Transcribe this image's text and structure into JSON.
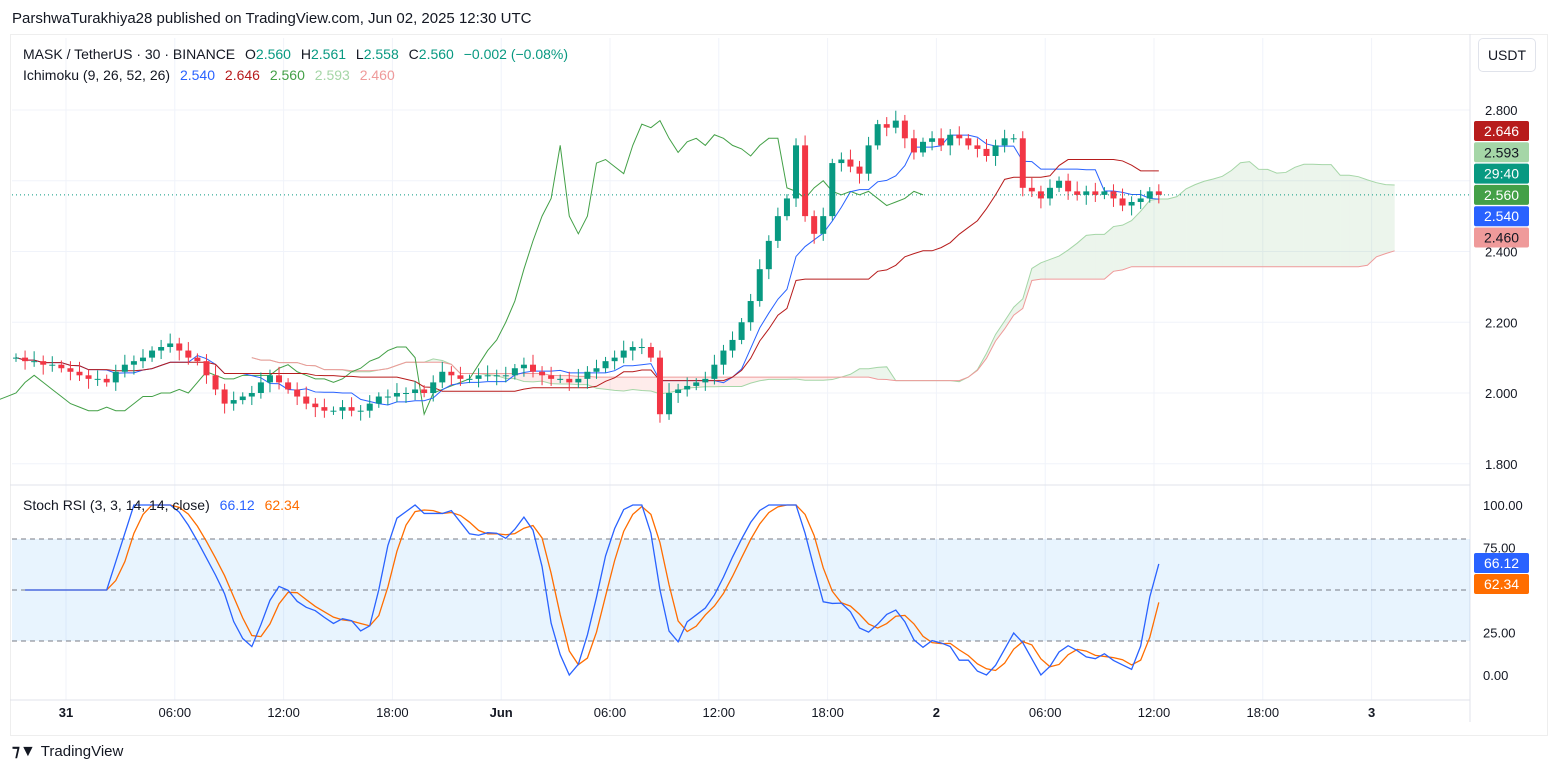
{
  "header": {
    "published": "ParshwaTurakhiya28 published on TradingView.com, Jun 02, 2025 12:30 UTC"
  },
  "symbol": {
    "name": "MASK / TetherUS · 30 · BINANCE",
    "o_label": "O",
    "o": "2.560",
    "h_label": "H",
    "h": "2.561",
    "l_label": "L",
    "l": "2.558",
    "c_label": "C",
    "c": "2.560",
    "change": "−0.002 (−0.08%)"
  },
  "ichimoku": {
    "label": "Ichimoku (9, 26, 52, 26)",
    "conversion": "2.540",
    "base": "2.646",
    "lagging": "2.560",
    "lead_a": "2.593",
    "lead_b": "2.460"
  },
  "stoch": {
    "label": "Stoch RSI (3, 3, 14, 14, close)",
    "k": "66.12",
    "d": "62.34"
  },
  "currency_button": "USDT",
  "countdown": "29:40",
  "footer": {
    "logo_text": "TradingView"
  },
  "colors": {
    "up": "#089981",
    "down": "#f23645",
    "conversion": "#2962ff",
    "base": "#b71c1c",
    "lagging": "#43a047",
    "lead_a": "#a5d6a7",
    "lead_b": "#ef9a9a",
    "stoch_k": "#2962ff",
    "stoch_d": "#ff6d00"
  },
  "chart_data": {
    "type": "candlestick",
    "interval_minutes": 30,
    "price_axis": {
      "ticks": [
        "1.800",
        "2.000",
        "2.200",
        "2.400",
        "2.800"
      ],
      "range": [
        1.75,
        2.95
      ]
    },
    "stoch_axis": {
      "ticks": [
        "100.00",
        "75.00",
        "25.00",
        "0.00"
      ],
      "bands": [
        20,
        80
      ],
      "range": [
        -15,
        110
      ]
    },
    "time_axis": {
      "ticks": [
        "31",
        "06:00",
        "12:00",
        "18:00",
        "Jun",
        "06:00",
        "12:00",
        "18:00",
        "2",
        "06:00",
        "12:00",
        "18:00",
        "3"
      ]
    },
    "last_price": 2.56,
    "price_labels": [
      {
        "value": "2.646",
        "color": "#b71c1c",
        "text": "#fff"
      },
      {
        "value": "2.593",
        "color": "#a5d6a7",
        "text": "#131722"
      },
      {
        "value": "29:40",
        "color": "#089981",
        "text": "#fff"
      },
      {
        "value": "2.560",
        "color": "#43a047",
        "text": "#fff"
      },
      {
        "value": "2.540",
        "color": "#2962ff",
        "text": "#fff"
      },
      {
        "value": "2.460",
        "color": "#ef9a9a",
        "text": "#131722"
      }
    ],
    "stoch_labels": [
      {
        "value": "66.12",
        "color": "#2962ff"
      },
      {
        "value": "62.34",
        "color": "#ff6d00"
      }
    ],
    "closes": [
      2.1,
      2.09,
      2.09,
      2.08,
      2.08,
      2.07,
      2.06,
      2.05,
      2.04,
      2.04,
      2.03,
      2.06,
      2.08,
      2.09,
      2.1,
      2.12,
      2.13,
      2.14,
      2.12,
      2.1,
      2.09,
      2.05,
      2.01,
      1.97,
      1.98,
      1.99,
      2.0,
      2.03,
      2.05,
      2.03,
      2.01,
      1.99,
      1.97,
      1.96,
      1.95,
      1.95,
      1.96,
      1.95,
      1.95,
      1.97,
      1.99,
      1.99,
      2.0,
      2.0,
      2.01,
      2.0,
      2.03,
      2.06,
      2.05,
      2.04,
      2.04,
      2.05,
      2.05,
      2.05,
      2.05,
      2.07,
      2.08,
      2.06,
      2.05,
      2.04,
      2.04,
      2.03,
      2.04,
      2.06,
      2.07,
      2.09,
      2.1,
      2.12,
      2.13,
      2.13,
      2.1,
      1.94,
      2.0,
      2.01,
      2.02,
      2.03,
      2.04,
      2.08,
      2.12,
      2.15,
      2.2,
      2.26,
      2.35,
      2.43,
      2.5,
      2.55,
      2.7,
      2.5,
      2.45,
      2.5,
      2.65,
      2.66,
      2.64,
      2.62,
      2.7,
      2.76,
      2.75,
      2.77,
      2.72,
      2.68,
      2.71,
      2.72,
      2.7,
      2.73,
      2.72,
      2.7,
      2.69,
      2.67,
      2.7,
      2.72,
      2.72,
      2.58,
      2.57,
      2.55,
      2.58,
      2.6,
      2.57,
      2.56,
      2.57,
      2.56,
      2.57,
      2.55,
      2.53,
      2.54,
      2.55,
      2.57,
      2.56
    ]
  }
}
